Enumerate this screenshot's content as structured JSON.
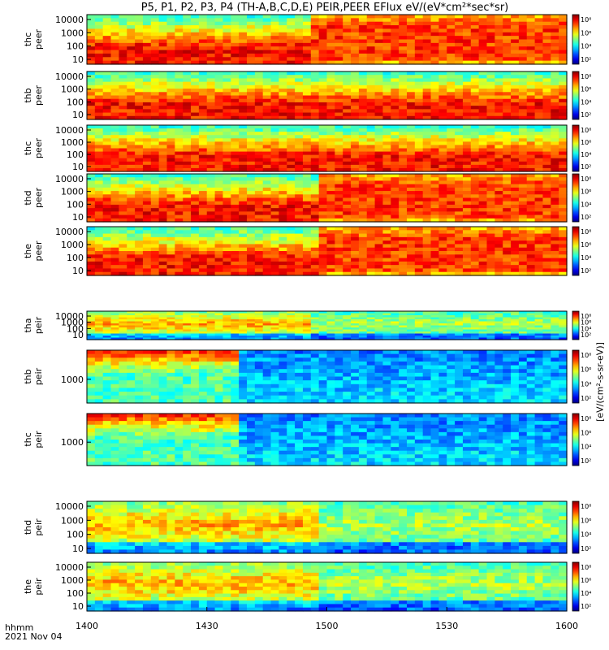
{
  "title": "P5, P1, P2, P3, P4 (TH-A,B,C,D,E) PEIR,PEER EFlux eV/(eV*cm²*sec*sr)",
  "time_label": "hhmm",
  "date_label": "2021 Nov 04",
  "colorbar_unit": "[eV/(cm²-s-sr-eV)]",
  "colors": {
    "spectrogram_red": "#e8281a",
    "spectrogram_green": "#3ed24a",
    "spectrogram_blue": "#2a6cf0",
    "background": "#ffffff"
  },
  "chart_data": {
    "type": "heatmap",
    "x_axis": {
      "range": [
        "1400",
        "1600"
      ],
      "tick_labels": [
        "1400",
        "1430",
        "1500",
        "1530",
        "1600"
      ],
      "tick_values": [
        0,
        30,
        60,
        90,
        120
      ]
    },
    "colorbar": {
      "scale": "log",
      "tick_labels": [
        "10²",
        "10⁴",
        "10⁶",
        "10⁸"
      ]
    },
    "panels": [
      {
        "label": "thc peer",
        "probe": "thc",
        "species": "peer",
        "y_ticks": [
          "10",
          "100",
          "1000",
          "10000"
        ],
        "y_scale": "log",
        "regime_change_minute": 55
      },
      {
        "label": "thb peer",
        "probe": "thb",
        "species": "peer",
        "y_ticks": [
          "10",
          "100",
          "1000",
          "10000"
        ],
        "y_scale": "log",
        "regime_change_minute": null
      },
      {
        "label": "thc peer",
        "probe": "thc",
        "species": "peer",
        "y_ticks": [
          "10",
          "100",
          "1000",
          "10000"
        ],
        "y_scale": "log",
        "regime_change_minute": null
      },
      {
        "label": "thd peer",
        "probe": "thd",
        "species": "peer",
        "y_ticks": [
          "10",
          "100",
          "1000",
          "10000"
        ],
        "y_scale": "log",
        "regime_change_minute": 58
      },
      {
        "label": "the peer",
        "probe": "the",
        "species": "peer",
        "y_ticks": [
          "10",
          "100",
          "1000",
          "10000"
        ],
        "y_scale": "log",
        "regime_change_minute": 58
      },
      {
        "label": "tha peir",
        "probe": "tha",
        "species": "peir",
        "y_ticks": [
          "10",
          "100",
          "1000",
          "10000"
        ],
        "y_scale": "log",
        "regime_change_minute": 55
      },
      {
        "label": "thb peir",
        "probe": "thb",
        "species": "peir",
        "y_ticks": [
          "1000"
        ],
        "y_scale": "log",
        "regime_change_minute": 38
      },
      {
        "label": "thc peir",
        "probe": "thc",
        "species": "peir",
        "y_ticks": [
          "1000"
        ],
        "y_scale": "log",
        "regime_change_minute": 37
      },
      {
        "label": "thd peir",
        "probe": "thd",
        "species": "peir",
        "y_ticks": [
          "10",
          "100",
          "1000",
          "10000"
        ],
        "y_scale": "log",
        "regime_change_minute": 58
      },
      {
        "label": "the peir",
        "probe": "the",
        "species": "peir",
        "y_ticks": [
          "10",
          "100",
          "1000",
          "10000"
        ],
        "y_scale": "log",
        "regime_change_minute": 58
      }
    ]
  }
}
